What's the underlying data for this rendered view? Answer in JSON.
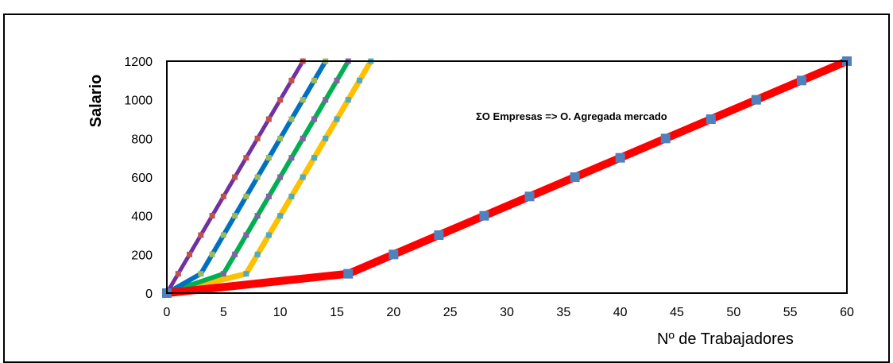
{
  "chart_data": {
    "type": "line",
    "title": "",
    "xlabel": "Nº de Trabajadores",
    "ylabel": "Salario",
    "annotation": "ΣO Empresas => O. Agregada mercado",
    "xlim": [
      0,
      60
    ],
    "ylim": [
      0,
      1200
    ],
    "x_ticks": [
      0,
      5,
      10,
      15,
      20,
      25,
      30,
      35,
      40,
      45,
      50,
      55,
      60
    ],
    "y_ticks": [
      0,
      200,
      400,
      600,
      800,
      1000,
      1200
    ],
    "grid": false,
    "series": [
      {
        "color": "#FFC000",
        "marker_color": "#4BACC6",
        "line_width": 7,
        "marker_size": 7,
        "x": [
          0,
          7,
          8,
          9,
          10,
          11,
          12,
          13,
          14,
          15,
          16,
          17,
          18
        ],
        "y": [
          0,
          100,
          200,
          300,
          400,
          500,
          600,
          700,
          800,
          900,
          1000,
          1100,
          1200
        ]
      },
      {
        "color": "#00B050",
        "marker_color": "#8064A2",
        "line_width": 6,
        "marker_size": 7,
        "x": [
          0,
          5,
          6,
          7,
          8,
          9,
          10,
          11,
          12,
          13,
          14,
          15,
          16
        ],
        "y": [
          0,
          100,
          200,
          300,
          400,
          500,
          600,
          700,
          800,
          900,
          1000,
          1100,
          1200
        ]
      },
      {
        "color": "#0070C0",
        "marker_color": "#9BBB59",
        "line_width": 6,
        "marker_size": 7,
        "x": [
          0,
          3,
          4,
          5,
          6,
          7,
          8,
          9,
          10,
          11,
          12,
          13,
          14
        ],
        "y": [
          0,
          100,
          200,
          300,
          400,
          500,
          600,
          700,
          800,
          900,
          1000,
          1100,
          1200
        ]
      },
      {
        "color": "#7030A0",
        "marker_color": "#C0504D",
        "line_width": 5,
        "marker_size": 7,
        "x": [
          0,
          1,
          2,
          3,
          4,
          5,
          6,
          7,
          8,
          9,
          10,
          11,
          12
        ],
        "y": [
          0,
          100,
          200,
          300,
          400,
          500,
          600,
          700,
          800,
          900,
          1000,
          1100,
          1200
        ]
      },
      {
        "color": "#FF0000",
        "marker_color": "#4F81BD",
        "line_width": 10,
        "marker_size": 12,
        "x": [
          0,
          16,
          20,
          24,
          28,
          32,
          36,
          40,
          44,
          48,
          52,
          56,
          60
        ],
        "y": [
          0,
          100,
          200,
          300,
          400,
          500,
          600,
          700,
          800,
          900,
          1000,
          1100,
          1200
        ]
      }
    ]
  }
}
